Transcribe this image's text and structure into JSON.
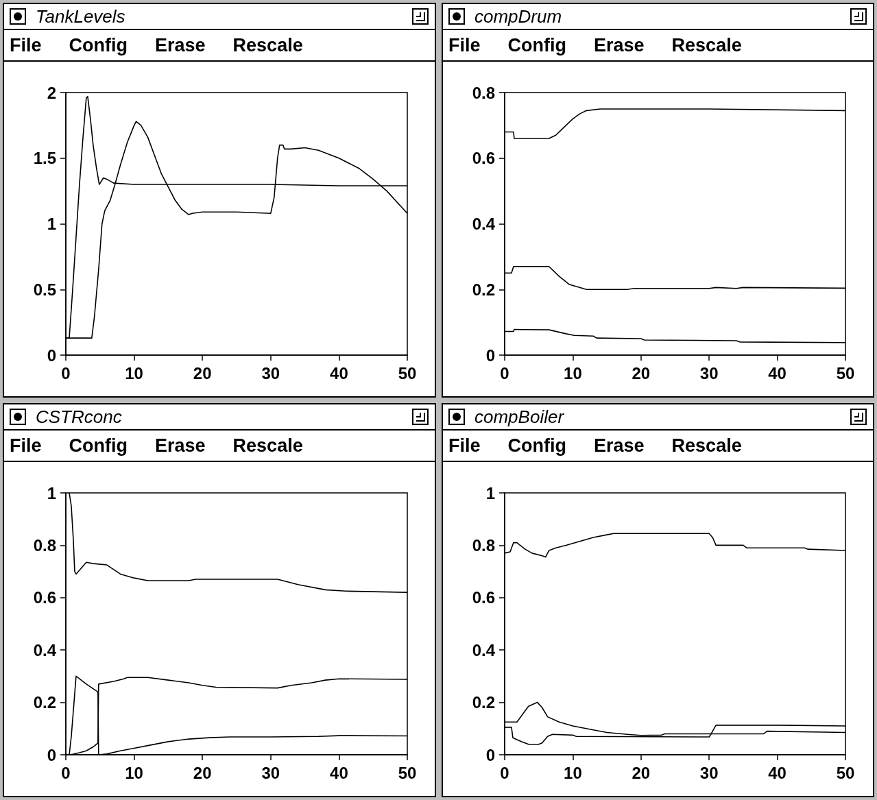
{
  "chart_data": [
    {
      "type": "line",
      "title": "TankLevels",
      "annotations": [
        "File",
        "Config",
        "Erase",
        "Rescale"
      ],
      "xlim": [
        0,
        50
      ],
      "xticks": [
        0,
        10,
        20,
        30,
        40,
        50
      ],
      "ylim": [
        0,
        2
      ],
      "yticks": [
        0,
        0.5,
        1,
        1.5,
        2
      ],
      "series": [
        {
          "color": "#000000",
          "x": [
            0,
            0.5,
            1,
            1.5,
            2,
            2.5,
            3,
            3.2,
            3.6,
            4,
            4.5,
            4.9,
            5.5,
            6,
            7,
            10,
            20,
            30,
            40,
            50
          ],
          "values": [
            0.13,
            0.13,
            0.5,
            0.9,
            1.3,
            1.65,
            1.96,
            1.97,
            1.8,
            1.6,
            1.42,
            1.3,
            1.35,
            1.34,
            1.31,
            1.3,
            1.3,
            1.3,
            1.29,
            1.29
          ]
        },
        {
          "color": "#000000",
          "x": [
            0,
            3.8,
            4.2,
            4.8,
            5.3,
            5.7,
            6.5,
            7.2,
            8,
            9,
            10,
            10.3,
            11,
            12,
            13,
            14,
            15,
            16,
            17,
            18,
            18.5,
            20,
            25,
            30,
            30.5,
            31,
            31.3,
            31.8,
            32,
            33,
            35,
            37,
            40,
            43,
            45,
            47,
            50
          ],
          "values": [
            0.13,
            0.13,
            0.3,
            0.65,
            1.0,
            1.1,
            1.18,
            1.3,
            1.45,
            1.62,
            1.75,
            1.78,
            1.75,
            1.66,
            1.52,
            1.38,
            1.28,
            1.18,
            1.11,
            1.07,
            1.08,
            1.09,
            1.09,
            1.08,
            1.2,
            1.5,
            1.6,
            1.6,
            1.57,
            1.57,
            1.58,
            1.56,
            1.5,
            1.42,
            1.34,
            1.25,
            1.08
          ]
        }
      ]
    },
    {
      "type": "line",
      "title": "compDrum",
      "annotations": [
        "File",
        "Config",
        "Erase",
        "Rescale"
      ],
      "xlim": [
        0,
        50
      ],
      "xticks": [
        0,
        10,
        20,
        30,
        40,
        50
      ],
      "ylim": [
        0,
        0.8
      ],
      "yticks": [
        0,
        0.2,
        0.4,
        0.6,
        0.8
      ],
      "series": [
        {
          "color": "#000000",
          "x": [
            0,
            1.3,
            1.4,
            6.5,
            7.5,
            8.5,
            10,
            11,
            12,
            14,
            30,
            50
          ],
          "values": [
            0.68,
            0.68,
            0.66,
            0.66,
            0.67,
            0.69,
            0.72,
            0.735,
            0.745,
            0.75,
            0.75,
            0.745
          ]
        },
        {
          "color": "#000000",
          "x": [
            0,
            1,
            1.3,
            6.5,
            8,
            9.5,
            12,
            18,
            19,
            30,
            31,
            34,
            35,
            50
          ],
          "values": [
            0.25,
            0.25,
            0.27,
            0.27,
            0.24,
            0.215,
            0.2,
            0.2,
            0.203,
            0.203,
            0.206,
            0.203,
            0.206,
            0.204
          ]
        },
        {
          "color": "#000000",
          "x": [
            0,
            1.3,
            1.4,
            6.5,
            9,
            10.2,
            13,
            13.5,
            20,
            20.5,
            34,
            34.5,
            50
          ],
          "values": [
            0.072,
            0.072,
            0.078,
            0.077,
            0.065,
            0.06,
            0.058,
            0.052,
            0.05,
            0.046,
            0.044,
            0.04,
            0.038
          ]
        }
      ]
    },
    {
      "type": "line",
      "title": "CSTRconc",
      "annotations": [
        "File",
        "Config",
        "Erase",
        "Rescale"
      ],
      "xlim": [
        0,
        50
      ],
      "xticks": [
        0,
        10,
        20,
        30,
        40,
        50
      ],
      "ylim": [
        0,
        1
      ],
      "yticks": [
        0,
        0.2,
        0.4,
        0.6,
        0.8,
        1
      ],
      "series": [
        {
          "color": "#000000",
          "x": [
            0.5,
            0.8,
            1.1,
            1.3,
            1.5,
            3,
            4,
            6,
            8,
            10,
            12,
            18,
            19,
            31,
            34,
            38,
            41,
            50
          ],
          "values": [
            1,
            0.95,
            0.82,
            0.7,
            0.69,
            0.735,
            0.73,
            0.725,
            0.69,
            0.675,
            0.665,
            0.665,
            0.67,
            0.67,
            0.65,
            0.63,
            0.625,
            0.62
          ]
        },
        {
          "color": "#000000",
          "x": [
            0,
            0.5,
            0.8,
            1.2,
            1.5,
            2,
            3,
            4.7,
            4.8,
            6,
            8,
            10,
            12,
            15,
            18,
            21,
            24,
            30,
            37,
            40,
            50
          ],
          "values": [
            0,
            0,
            0.07,
            0.2,
            0.3,
            0.29,
            0.27,
            0.24,
            0,
            0.003,
            0.015,
            0.025,
            0.035,
            0.05,
            0.06,
            0.065,
            0.068,
            0.068,
            0.07,
            0.073,
            0.072
          ]
        },
        {
          "color": "#000000",
          "x": [
            0,
            1,
            2,
            3,
            4,
            4.7,
            4.8,
            7,
            8.5,
            9,
            12,
            15,
            18,
            20,
            22,
            31,
            33,
            36,
            38,
            40,
            50
          ],
          "values": [
            0,
            0.002,
            0.008,
            0.015,
            0.03,
            0.045,
            0.27,
            0.28,
            0.29,
            0.295,
            0.295,
            0.285,
            0.275,
            0.265,
            0.258,
            0.255,
            0.265,
            0.275,
            0.285,
            0.29,
            0.288
          ]
        }
      ]
    },
    {
      "type": "line",
      "title": "compBoiler",
      "annotations": [
        "File",
        "Config",
        "Erase",
        "Rescale"
      ],
      "xlim": [
        0,
        50
      ],
      "xticks": [
        0,
        10,
        20,
        30,
        40,
        50
      ],
      "ylim": [
        0,
        1
      ],
      "yticks": [
        0,
        0.2,
        0.4,
        0.6,
        0.8,
        1
      ],
      "series": [
        {
          "color": "#000000",
          "x": [
            0,
            0.8,
            1.3,
            1.8,
            3,
            4,
            5.5,
            6,
            6.5,
            7.5,
            9,
            11,
            13,
            15,
            16,
            30,
            30.5,
            31,
            35,
            35.5,
            44,
            44.5,
            50
          ],
          "values": [
            0.77,
            0.775,
            0.81,
            0.81,
            0.785,
            0.77,
            0.76,
            0.755,
            0.78,
            0.79,
            0.8,
            0.815,
            0.83,
            0.84,
            0.845,
            0.845,
            0.83,
            0.8,
            0.8,
            0.79,
            0.79,
            0.785,
            0.78
          ]
        },
        {
          "color": "#000000",
          "x": [
            0,
            1.8,
            2.5,
            3.5,
            4.8,
            5.5,
            6.3,
            8,
            10,
            13,
            15,
            18,
            20,
            23,
            23.5,
            30,
            31,
            38,
            38.5,
            50
          ],
          "values": [
            0.125,
            0.125,
            0.15,
            0.185,
            0.2,
            0.18,
            0.145,
            0.125,
            0.11,
            0.095,
            0.085,
            0.078,
            0.074,
            0.075,
            0.08,
            0.08,
            0.08,
            0.08,
            0.09,
            0.085
          ]
        },
        {
          "color": "#000000",
          "x": [
            0,
            1,
            1.2,
            2.5,
            3.5,
            5,
            5.5,
            6.3,
            7,
            10,
            10.5,
            30,
            30.3,
            31,
            40,
            50
          ],
          "values": [
            0.105,
            0.105,
            0.065,
            0.05,
            0.04,
            0.04,
            0.045,
            0.07,
            0.078,
            0.075,
            0.07,
            0.068,
            0.08,
            0.113,
            0.113,
            0.11
          ]
        }
      ]
    }
  ]
}
